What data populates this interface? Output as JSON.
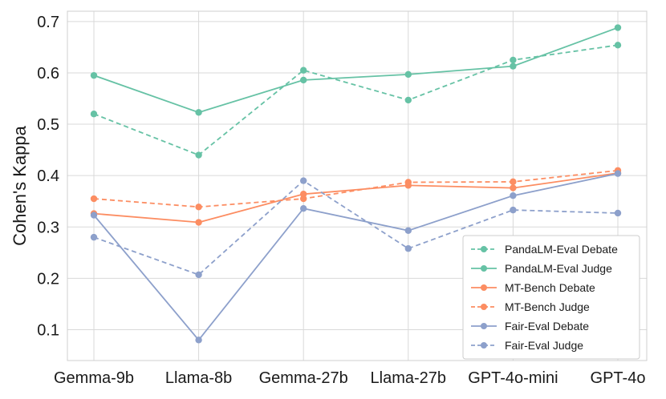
{
  "chart_data": {
    "type": "line",
    "title": "",
    "xlabel": "",
    "ylabel": "Cohen's Kappa",
    "categories": [
      "Gemma-9b",
      "Llama-8b",
      "Gemma-27b",
      "Llama-27b",
      "GPT-4o-mini",
      "GPT-4o"
    ],
    "ylim": [
      0.04,
      0.72
    ],
    "yticks": [
      0.1,
      0.2,
      0.3,
      0.4,
      0.5,
      0.6,
      0.7
    ],
    "ytick_labels": [
      "0.1",
      "0.2",
      "0.3",
      "0.4",
      "0.5",
      "0.6",
      "0.7"
    ],
    "grid": true,
    "legend_position": "bottom-right",
    "series": [
      {
        "name": "PandaLM-Eval Debate",
        "color": "#66c2a5",
        "style": "dashed",
        "values": [
          0.52,
          0.44,
          0.605,
          0.547,
          0.625,
          0.654
        ]
      },
      {
        "name": "PandaLM-Eval Judge",
        "color": "#66c2a5",
        "style": "solid",
        "values": [
          0.595,
          0.523,
          0.586,
          0.597,
          0.613,
          0.688
        ]
      },
      {
        "name": "MT-Bench Debate",
        "color": "#fc8d62",
        "style": "solid",
        "values": [
          0.326,
          0.309,
          0.364,
          0.381,
          0.376,
          0.405
        ]
      },
      {
        "name": "MT-Bench Judge",
        "color": "#fc8d62",
        "style": "dashed",
        "values": [
          0.355,
          0.339,
          0.355,
          0.387,
          0.388,
          0.41
        ]
      },
      {
        "name": "Fair-Eval Debate",
        "color": "#8da0cb",
        "style": "solid",
        "values": [
          0.323,
          0.08,
          0.336,
          0.293,
          0.361,
          0.404
        ]
      },
      {
        "name": "Fair-Eval Judge",
        "color": "#8da0cb",
        "style": "dashed",
        "values": [
          0.28,
          0.207,
          0.39,
          0.258,
          0.333,
          0.327
        ]
      }
    ]
  }
}
